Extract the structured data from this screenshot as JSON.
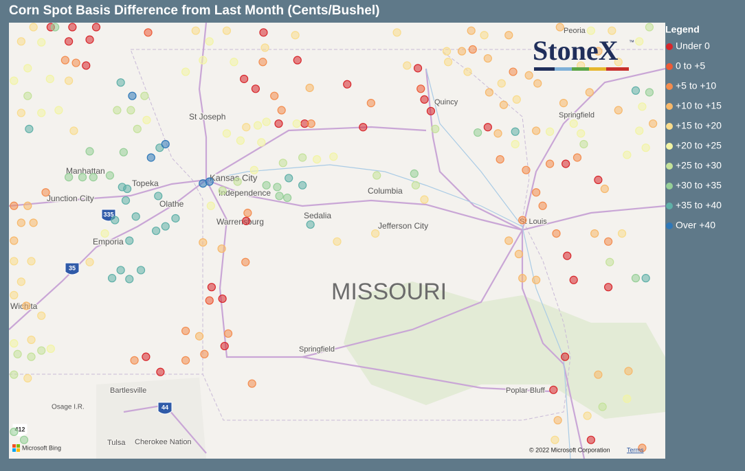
{
  "title": "Corn Spot Basis Difference from Last Month (Cents/Bushel)",
  "legend": {
    "title": "Legend"
  },
  "logo": {
    "text": "StoneX",
    "mark": "™"
  },
  "chart_data": {
    "type": "scatter",
    "xlim": [
      -97.32,
      -88.22
    ],
    "ylim": [
      35.98,
      40.86
    ],
    "series": [
      {
        "name": "Under 0",
        "color": "#d7262b",
        "x": [
          -96.74,
          -96.44,
          -96.11,
          -96.49,
          -96.2,
          -96.25,
          -95.42,
          -95.22,
          -94.51,
          -94.36,
          -94.33,
          -94.03,
          -94.06,
          -93.9,
          -93.79,
          -93.32,
          -93.58,
          -93.22,
          -92.63,
          -92.41,
          -91.65,
          -91.56,
          -91.47,
          -90.68,
          -89.6,
          -89.15,
          -89.58,
          -89.49,
          -89.01,
          -89.77,
          -89.25,
          -89.61
        ],
        "y": [
          40.81,
          40.81,
          40.81,
          40.65,
          40.67,
          40.38,
          37.12,
          36.95,
          37.9,
          37.77,
          37.24,
          38.64,
          40.23,
          40.12,
          40.75,
          40.44,
          39.73,
          39.73,
          40.17,
          39.69,
          40.35,
          40.0,
          39.87,
          39.69,
          39.28,
          39.1,
          38.25,
          37.98,
          37.9,
          36.75,
          36.19,
          37.12
        ]
      },
      {
        "name": "0 to +5",
        "color": "#ec5a36",
        "x": [
          -95.39,
          -94.54,
          -91.61
        ],
        "y": [
          40.75,
          37.75,
          40.12
        ]
      },
      {
        "name": "+5 to +10",
        "color": "#f38c4e",
        "x": [
          -96.54,
          -96.39,
          -96.81,
          -97.25,
          -95.58,
          -94.87,
          -94.61,
          -94.87,
          -94.28,
          -94.01,
          -94.04,
          -93.95,
          -93.8,
          -93.64,
          -93.54,
          -93.13,
          -92.3,
          -90.89,
          -90.33,
          -90.51,
          -90.15,
          -90.01,
          -89.82,
          -89.44,
          -89.01,
          -89.92,
          -89.73,
          -90.2,
          -88.54
        ],
        "y": [
          40.44,
          40.41,
          38.96,
          38.81,
          37.08,
          37.08,
          37.15,
          37.41,
          37.38,
          38.73,
          38.18,
          36.82,
          40.42,
          40.04,
          39.88,
          39.73,
          39.96,
          40.56,
          40.31,
          39.33,
          39.21,
          38.96,
          39.28,
          39.35,
          38.41,
          38.81,
          38.5,
          38.65,
          36.1
        ]
      },
      {
        "name": "+10 to +15",
        "color": "#f7b86a",
        "x": [
          -97.06,
          -97.15,
          -96.98,
          -97.25,
          -97.08,
          -94.68,
          -94.63,
          -94.37,
          -93.15,
          -90.91,
          -90.39,
          -91.04,
          -90.68,
          -90.66,
          -90.46,
          -90.11,
          -90.54,
          -90.01,
          -88.39,
          -88.87,
          -89.27,
          -89.15,
          -89.68,
          -89.99,
          -89.63,
          -89.06,
          -89.2,
          -90.25,
          -90.2,
          -90.01,
          -90.39,
          -89.15,
          -88.73,
          -89.71
        ],
        "y": [
          38.81,
          38.62,
          38.62,
          38.42,
          37.69,
          37.35,
          38.4,
          38.33,
          40.13,
          40.77,
          40.72,
          40.54,
          40.46,
          40.08,
          39.94,
          40.27,
          39.62,
          39.65,
          39.73,
          39.88,
          40.08,
          40.54,
          40.81,
          40.18,
          39.96,
          39.0,
          38.5,
          38.27,
          38.0,
          37.98,
          38.42,
          36.92,
          36.96,
          36.41
        ]
      },
      {
        "name": "+15 to +20",
        "color": "#f9dc8c",
        "x": [
          -96.98,
          -97.15,
          -96.49,
          -97.15,
          -96.42,
          -97.25,
          -97.01,
          -97.15,
          -97.25,
          -96.87,
          -97.01,
          -97.06,
          -96.2,
          -94.73,
          -94.3,
          -93.77,
          -93.35,
          -94.03,
          -92.77,
          -92.24,
          -91.94,
          -91.8,
          -91.56,
          -90.73,
          -91.25,
          -91.23,
          -90.96,
          -90.49,
          -90.28,
          -89.39,
          -88.87,
          -88.96,
          -88.82,
          -89.3,
          -89.75
        ],
        "y": [
          40.81,
          40.65,
          40.21,
          39.85,
          39.65,
          38.19,
          38.19,
          37.96,
          37.81,
          37.58,
          37.31,
          36.88,
          38.18,
          40.77,
          40.77,
          40.58,
          40.72,
          39.69,
          38.41,
          38.5,
          40.75,
          40.38,
          38.88,
          40.72,
          40.54,
          40.42,
          40.31,
          40.18,
          40.0,
          40.38,
          40.42,
          40.77,
          38.5,
          36.46,
          36.19
        ]
      },
      {
        "name": "+20 to +25",
        "color": "#f2f4a4",
        "x": [
          -96.87,
          -97.06,
          -97.25,
          -96.75,
          -96.87,
          -96.63,
          -95.41,
          -97.25,
          -96.74,
          -95.99,
          -94.52,
          -94.87,
          -94.63,
          -94.54,
          -94.2,
          -93.87,
          -93.75,
          -93.82,
          -94.3,
          -94.11,
          -93.92,
          -93.33,
          -93.05,
          -92.82,
          -89.82,
          -90.3,
          -88.75,
          -88.49,
          -88.58,
          -88.54,
          -88.58,
          -89.25,
          -89.49,
          -89.39,
          -88.75
        ],
        "y": [
          40.64,
          40.35,
          40.21,
          40.23,
          39.85,
          39.88,
          39.77,
          37.27,
          37.21,
          38.5,
          38.81,
          40.31,
          40.44,
          40.65,
          40.42,
          39.71,
          39.75,
          39.52,
          39.62,
          39.54,
          39.21,
          39.73,
          39.33,
          39.36,
          39.64,
          39.5,
          39.38,
          39.46,
          39.65,
          39.92,
          40.65,
          40.77,
          39.73,
          39.62,
          36.65
        ]
      },
      {
        "name": "+25 to +30",
        "color": "#c4e29a",
        "x": [
          -97.06,
          -95.44,
          -95.82,
          -95.63,
          -95.54,
          -97.2,
          -97.01,
          -97.25,
          -94.36,
          -94.15,
          -93.52,
          -93.25,
          -92.22,
          -91.68,
          -91.41,
          -88.44,
          -89.35,
          -88.99,
          -89.09,
          -96.87
        ],
        "y": [
          40.04,
          40.04,
          39.88,
          39.88,
          39.67,
          37.15,
          37.12,
          36.92,
          38.98,
          39.08,
          39.29,
          39.35,
          39.15,
          39.04,
          39.67,
          40.81,
          39.5,
          38.18,
          36.56,
          37.19
        ]
      },
      {
        "name": "+30 to +35",
        "color": "#96cf98",
        "x": [
          -96.68,
          -96.2,
          -95.73,
          -96.49,
          -96.3,
          -96.15,
          -95.92,
          -97.25,
          -97.11,
          -93.75,
          -93.6,
          -93.57,
          -93.46,
          -91.7,
          -90.82,
          -88.63,
          -88.44
        ],
        "y": [
          40.81,
          39.42,
          39.41,
          39.13,
          39.13,
          39.13,
          39.15,
          36.28,
          36.19,
          39.04,
          39.02,
          38.92,
          38.9,
          39.17,
          39.63,
          38.0,
          40.08
        ]
      },
      {
        "name": "+35 to +40",
        "color": "#5fb0a8",
        "x": [
          -95.77,
          -97.04,
          -95.23,
          -95.75,
          -95.68,
          -95.7,
          -95.25,
          -95.15,
          -95.01,
          -95.28,
          -95.56,
          -95.85,
          -95.65,
          -95.89,
          -95.65,
          -95.49,
          -95.77,
          -93.44,
          -93.25,
          -93.14,
          -90.3,
          -88.63,
          -88.49
        ],
        "y": [
          40.19,
          39.67,
          39.46,
          39.02,
          39.0,
          38.87,
          38.92,
          38.58,
          38.67,
          38.53,
          38.69,
          38.65,
          38.42,
          38.0,
          37.99,
          38.09,
          38.09,
          39.12,
          39.04,
          38.6,
          39.64,
          40.1,
          38.0
        ]
      },
      {
        "name": "Over +40",
        "color": "#2f78b8",
        "x": [
          -95.61,
          -95.15,
          -95.35,
          -94.63,
          -94.54
        ],
        "y": [
          40.04,
          39.5,
          39.35,
          39.06,
          39.08
        ]
      }
    ]
  },
  "map": {
    "labels": [
      "St Joseph",
      "Manhattan",
      "Topeka",
      "Kansas City",
      "Independence",
      "Junction City",
      "Olathe",
      "Warrensburg",
      "Sedalia",
      "Columbia",
      "Jefferson City",
      "Emporia",
      "Wichita",
      "MISSOURI",
      "Springfield",
      "Bartlesville",
      "Osage I.R.",
      "Tulsa",
      "Cherokee Nation",
      "Poplar Bluff",
      "St Louis",
      "Quincy",
      "Springfield",
      "Peoria"
    ],
    "shields": [
      "335",
      "35",
      "44",
      "412"
    ],
    "provider": "Microsoft Bing",
    "attribution": "© 2022 Microsoft Corporation",
    "terms": "Terms"
  }
}
